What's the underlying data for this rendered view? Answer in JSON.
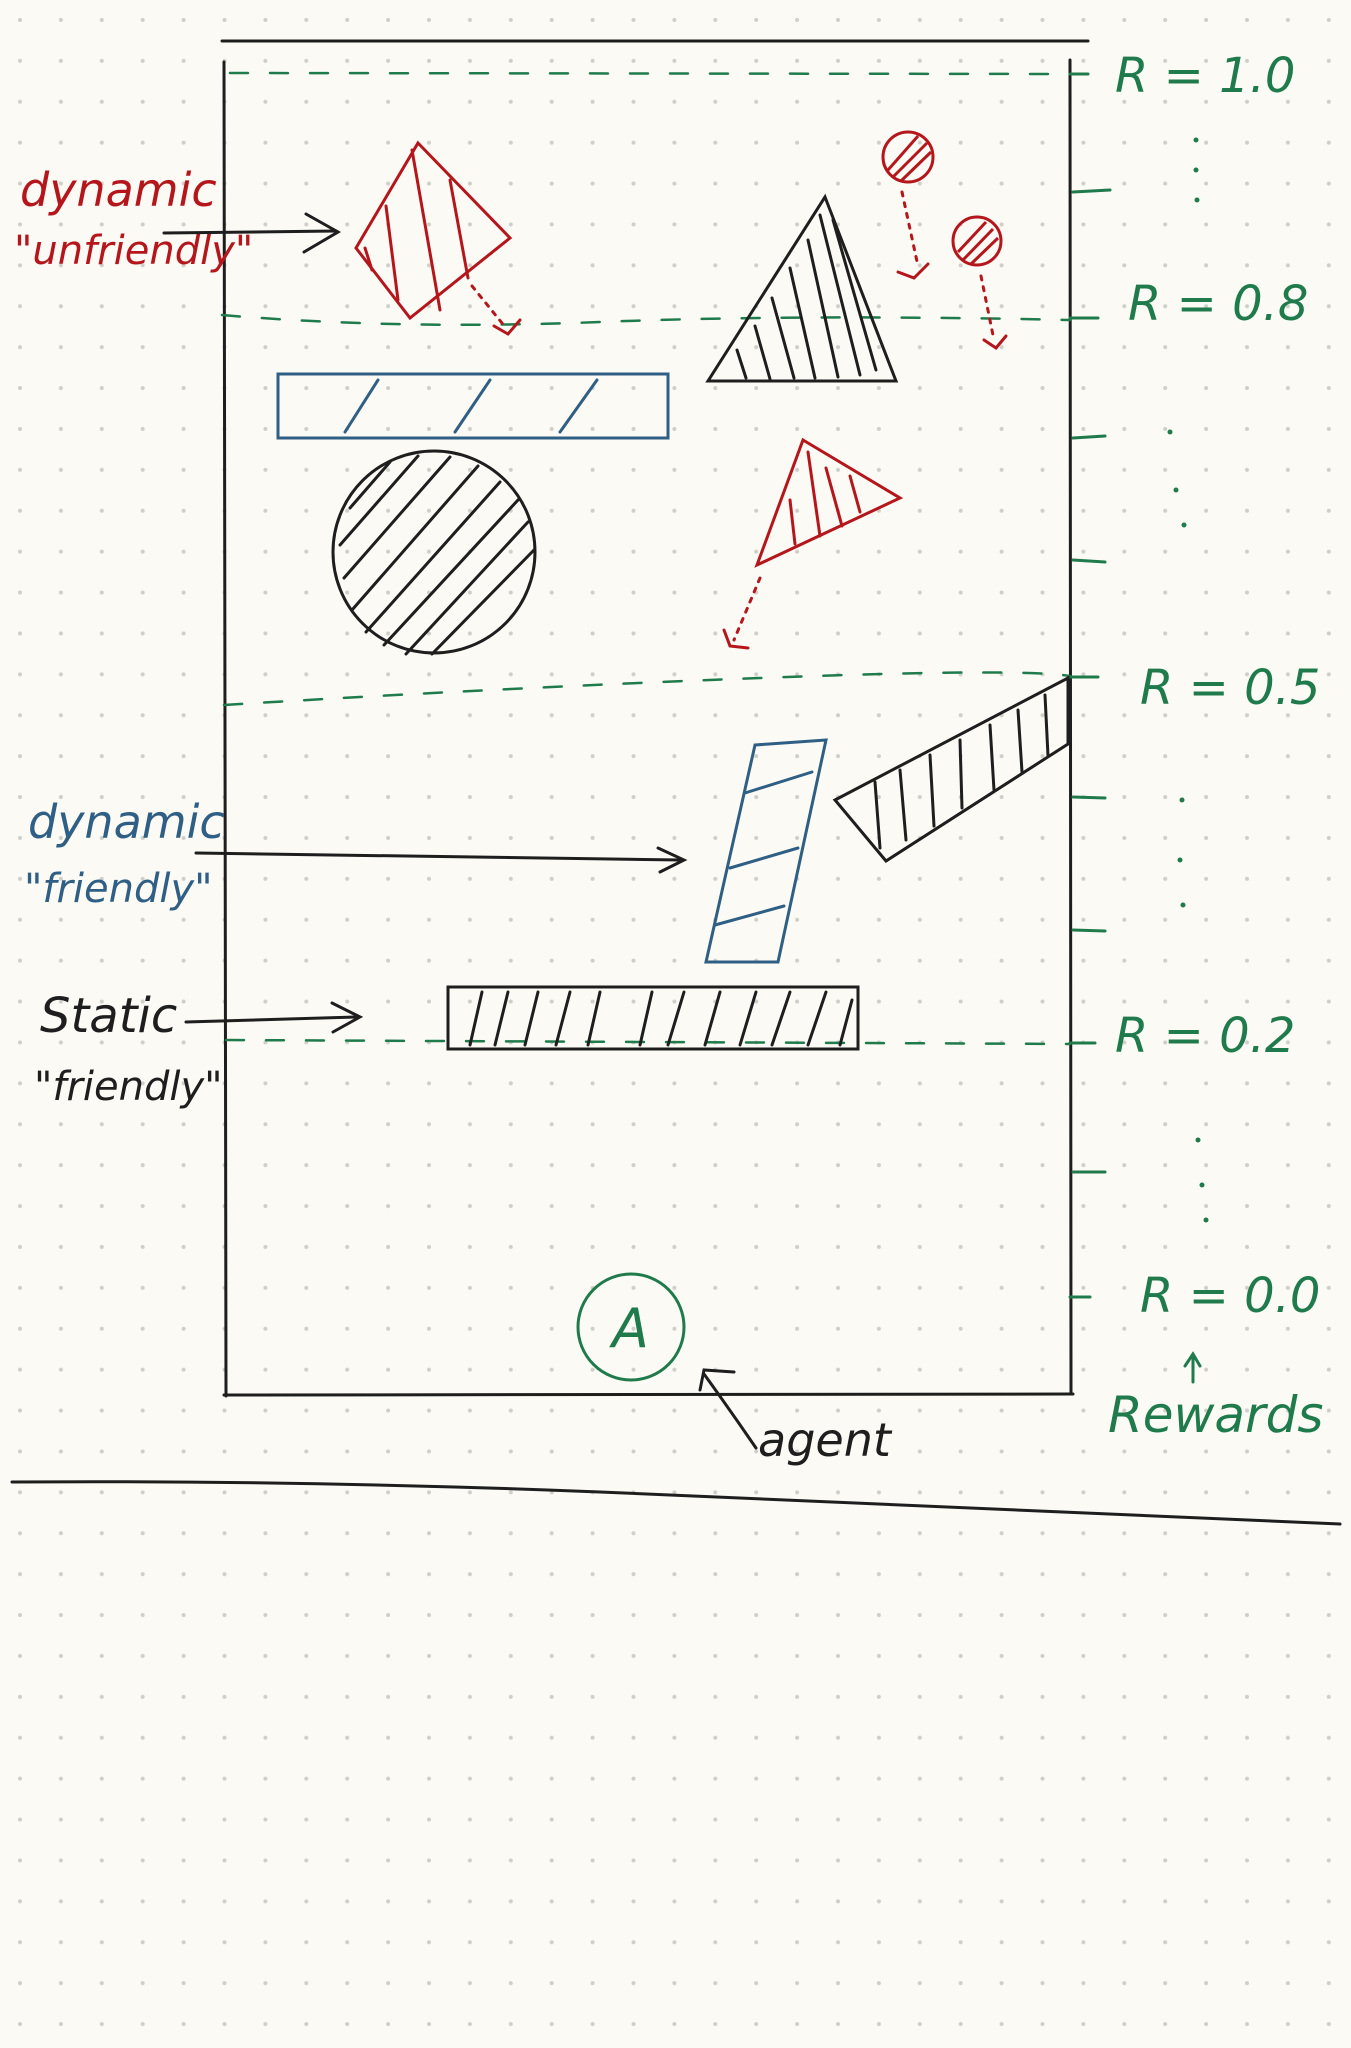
{
  "colors": {
    "background": "#fbfaf4",
    "dots": "#c9c9c4",
    "ink": "#1e1e1e",
    "green": "#1f7a4c",
    "red": "#b5161c",
    "blue": "#2f5f84"
  },
  "labels": {
    "unfriendly_line1": "dynamic",
    "unfriendly_line2": "\"unfriendly\"",
    "friendly_line1": "dynamic",
    "friendly_line2": "\"friendly\"",
    "static_line1": "Static",
    "static_line2": "\"friendly\"",
    "agent": "agent",
    "agent_symbol": "A",
    "rewards": "Rewards"
  },
  "rewards": {
    "r10": "R = 1.0",
    "r08": "R = 0.8",
    "r05": "R = 0.5",
    "r02": "R = 0.2",
    "r00": "R = 0.0"
  },
  "icons": {
    "dots_vertical": "vertical-ellipsis"
  }
}
